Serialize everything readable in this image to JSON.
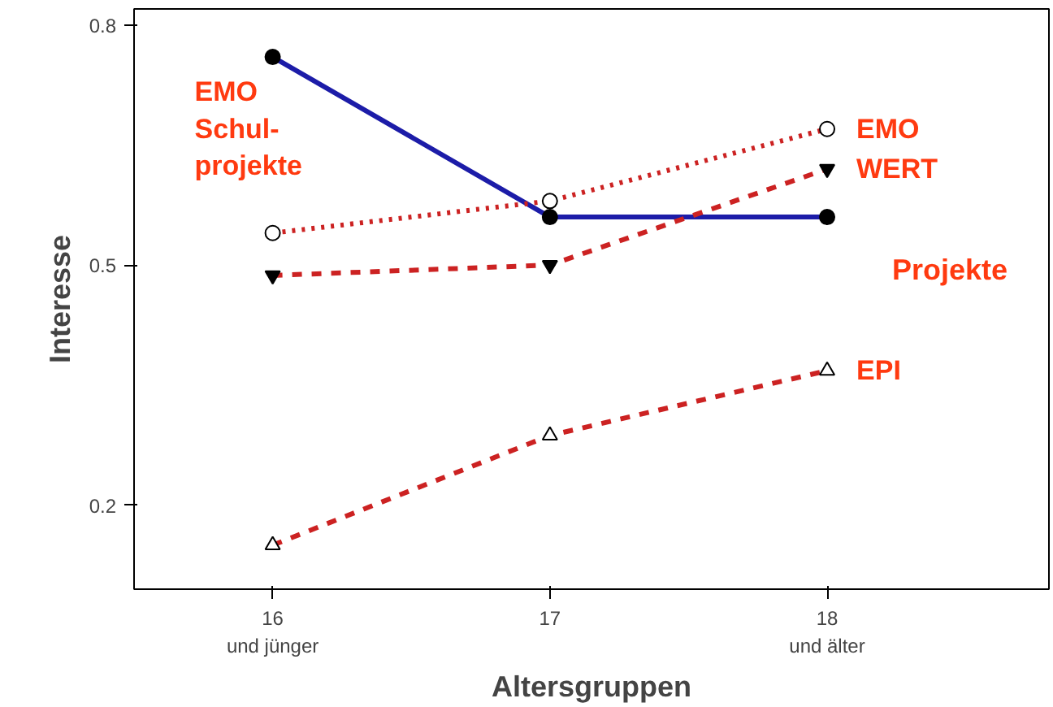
{
  "chart_data": {
    "type": "line",
    "xlabel": "Altersgruppen",
    "ylabel": "Interesse",
    "categories": [
      "16\nund jünger",
      "17",
      "18\nund älter"
    ],
    "ylim": [
      0.095,
      0.82
    ],
    "yticks": [
      0.2,
      0.5,
      0.8
    ],
    "grid": false,
    "series": [
      {
        "name": "EMO\nSchul-\nprojekte",
        "color": "#1c1ca8",
        "marker": "circle",
        "line_style": "solid",
        "values": [
          0.76,
          0.56,
          0.56
        ]
      },
      {
        "name": "EMO",
        "color": "#cc2222",
        "marker": "circle",
        "line_style": "dotted",
        "values": [
          0.54,
          0.58,
          0.67
        ]
      },
      {
        "name": "WERT",
        "color": "#cc2222",
        "marker": "triangle",
        "line_style": "dashed",
        "values": [
          0.487,
          0.5,
          0.62
        ]
      },
      {
        "name": "EPI",
        "color": "#cc2222",
        "marker": "triangle",
        "line_style": "dashed",
        "values": [
          0.15,
          0.287,
          0.368
        ]
      }
    ],
    "annotations": [
      "Projekte"
    ]
  }
}
